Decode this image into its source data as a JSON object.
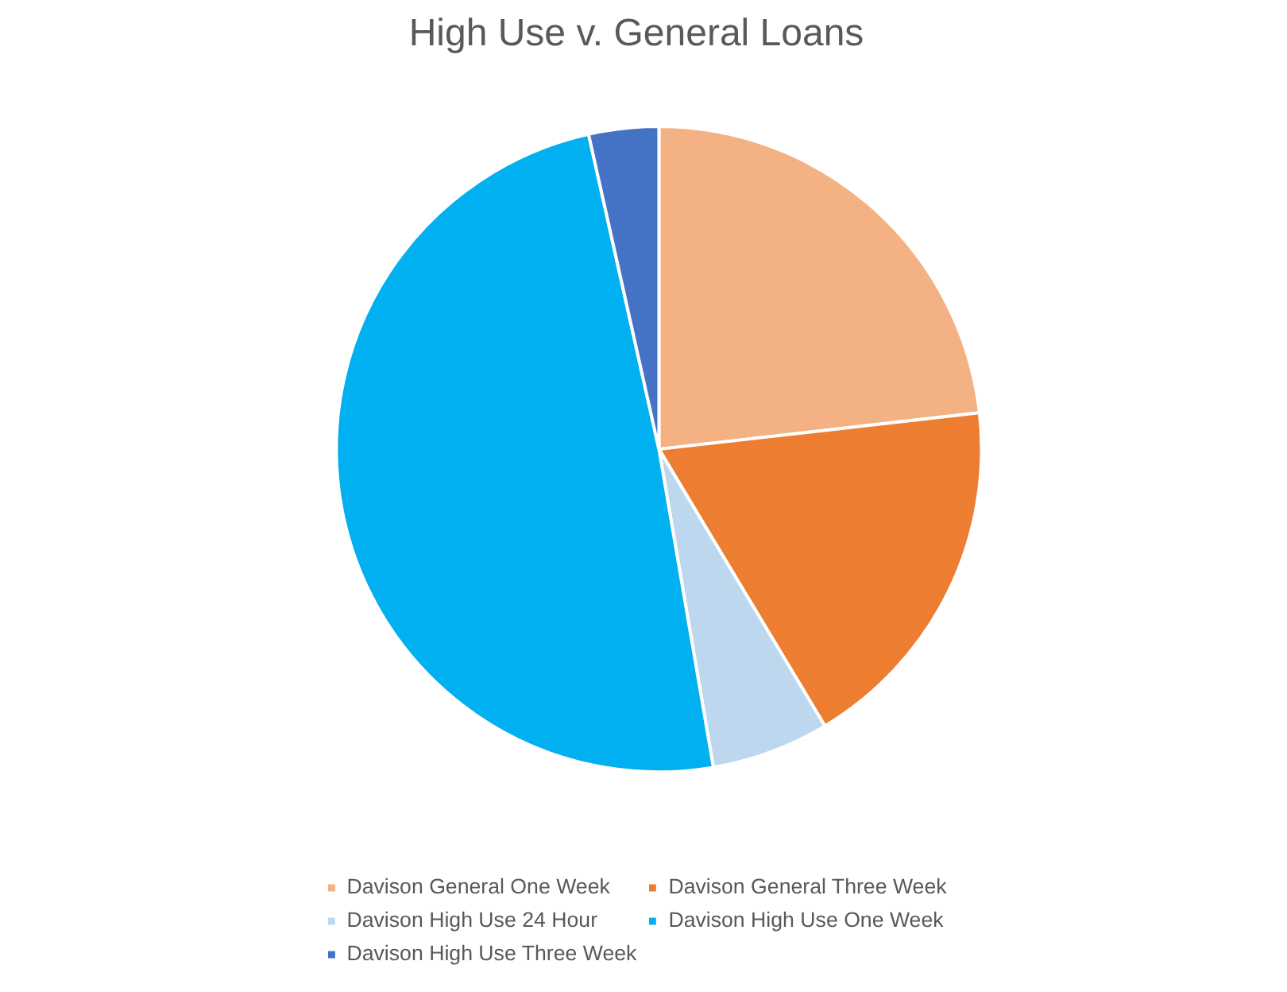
{
  "chart_data": {
    "type": "pie",
    "title": "High Use v. General Loans",
    "categories": [
      "Davison General One Week",
      "Davison General Three Week",
      "Davison High Use 24 Hour",
      "Davison High Use One Week",
      "Davison High Use Three Week"
    ],
    "values": [
      23.2,
      18.2,
      5.9,
      49.2,
      3.5
    ],
    "colors": [
      "#f4b183",
      "#ed7d31",
      "#bdd7ee",
      "#00b0f0",
      "#4472c4"
    ],
    "legend": "bottom"
  }
}
